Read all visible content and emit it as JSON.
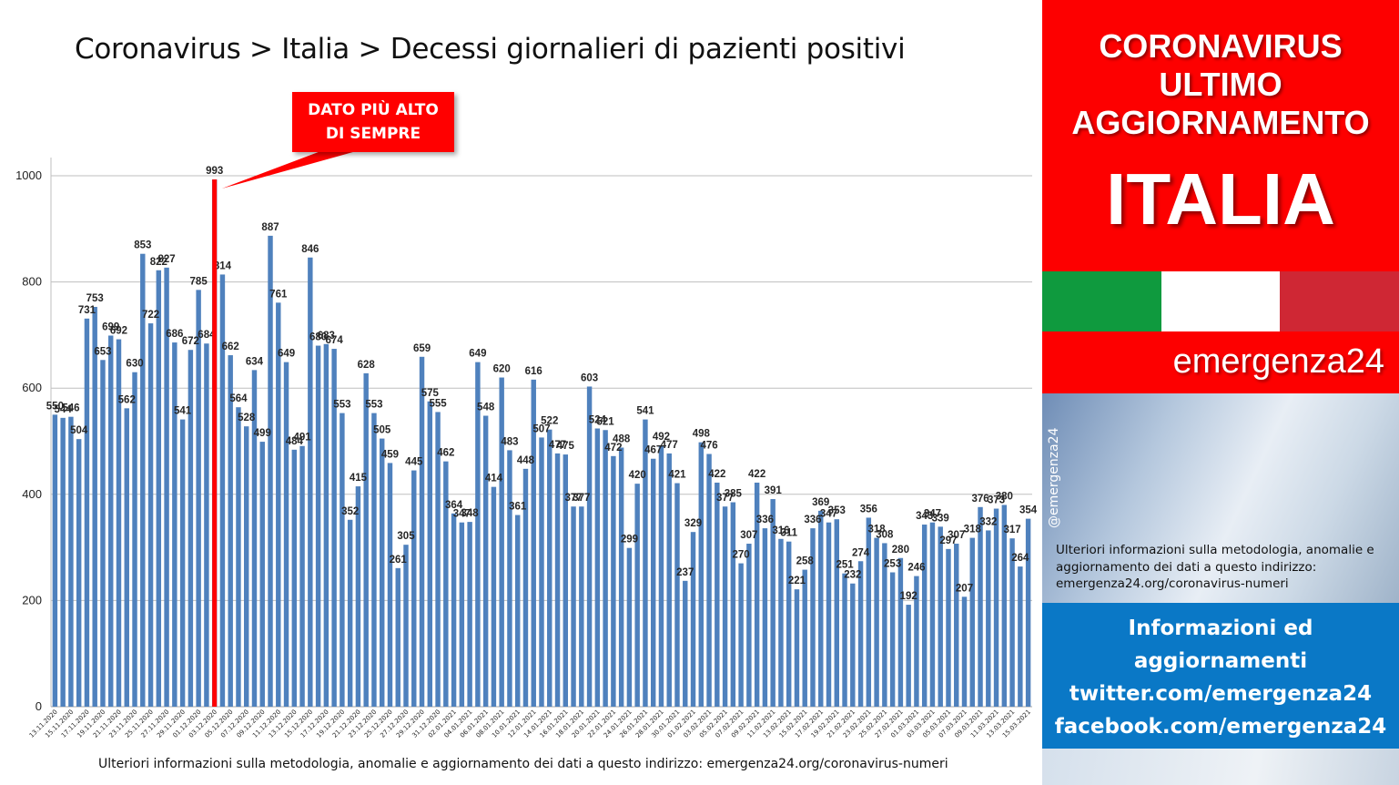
{
  "header": {
    "title": "Coronavirus > Italia > Decessi giornalieri di pazienti positivi"
  },
  "footnote": "Ulteriori informazioni sulla metodologia, anomalie e aggiornamento dei dati a questo indirizzo: emergenza24.org/coronavirus-numeri",
  "callout": {
    "line1": "DATO PIÙ ALTO",
    "line2": "DI SEMPRE",
    "highlight_value": 993,
    "color": "#ff0000"
  },
  "sidebar": {
    "headline_lines": [
      "CORONAVIRUS",
      "ULTIMO",
      "AGGIORNAMENTO"
    ],
    "country": "ITALIA",
    "brand": "emergenza24",
    "handle": "@emergenza24",
    "info_text": "Ulteriori informazioni sulla metodologia, anomalie e aggiornamento dei dati a questo indirizzo: emergenza24.org/coronavirus-numeri",
    "links": [
      "Informazioni ed",
      "aggiornamenti",
      "twitter.com/emergenza24",
      "facebook.com/emergenza24"
    ],
    "colors": {
      "red": "#fd0000",
      "blue": "#0a78c6",
      "flag_green": "#0f9a3e",
      "flag_white": "#ffffff",
      "flag_red": "#cf2734"
    }
  },
  "chart_data": {
    "type": "bar",
    "ylim": [
      0,
      1000
    ],
    "yticks": [
      0,
      200,
      400,
      600,
      800,
      1000
    ],
    "grid": true,
    "bar_color": "#4f81bd",
    "x_tick_labels": [
      "13.11.2020",
      "15.11.2020",
      "17.11.2020",
      "19.11.2020",
      "21.11.2020",
      "23.11.2020",
      "25.11.2020",
      "27.11.2020",
      "29.11.2020",
      "01.12.2020",
      "03.12.2020",
      "05.12.2020",
      "07.12.2020",
      "09.12.2020",
      "11.12.2020",
      "13.12.2020",
      "15.12.2020",
      "17.12.2020",
      "19.12.2020",
      "21.12.2020",
      "23.12.2020",
      "25.12.2020",
      "27.12.2020",
      "29.12.2020",
      "31.12.2020",
      "02.01.2021",
      "04.01.2021",
      "06.01.2021",
      "08.01.2021",
      "10.01.2021",
      "12.01.2021",
      "14.01.2021",
      "16.01.2021",
      "18.01.2021",
      "20.01.2021",
      "22.01.2021",
      "24.01.2021",
      "26.01.2021",
      "28.01.2021",
      "30.01.2021",
      "01.02.2021",
      "03.02.2021",
      "05.02.2021",
      "07.02.2021",
      "09.02.2021",
      "11.02.2021",
      "13.02.2021",
      "15.02.2021",
      "17.02.2021",
      "19.02.2021",
      "21.02.2021",
      "23.02.2021",
      "25.02.2021",
      "27.02.2021",
      "01.03.2021",
      "03.03.2021",
      "05.03.2021",
      "07.03.2021",
      "09.03.2021",
      "11.03.2021",
      "13.03.2021",
      "15.03.2021"
    ],
    "values": [
      550,
      544,
      546,
      504,
      731,
      753,
      653,
      699,
      692,
      562,
      630,
      853,
      722,
      822,
      827,
      686,
      541,
      672,
      785,
      684,
      993,
      814,
      662,
      564,
      528,
      634,
      499,
      887,
      761,
      649,
      484,
      491,
      846,
      680,
      683,
      674,
      553,
      352,
      415,
      628,
      553,
      505,
      459,
      261,
      305,
      445,
      659,
      575,
      555,
      462,
      364,
      347,
      348,
      649,
      548,
      414,
      620,
      483,
      361,
      448,
      616,
      507,
      522,
      477,
      475,
      377,
      377,
      603,
      524,
      521,
      472,
      488,
      299,
      420,
      541,
      467,
      492,
      477,
      421,
      237,
      329,
      498,
      476,
      422,
      377,
      385,
      270,
      307,
      422,
      336,
      391,
      316,
      311,
      221,
      258,
      336,
      369,
      347,
      353,
      251,
      232,
      274,
      356,
      318,
      308,
      253,
      280,
      192,
      246,
      343,
      347,
      339,
      297,
      307,
      207,
      318,
      376,
      332,
      373,
      380,
      317,
      264,
      354
    ]
  }
}
